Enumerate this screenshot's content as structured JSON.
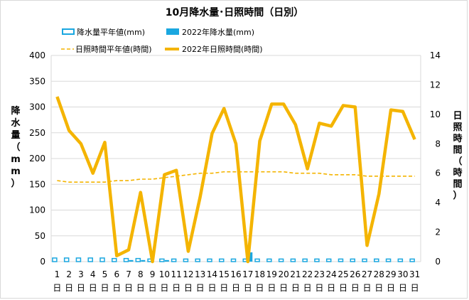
{
  "chart_data": {
    "type": "bar+line",
    "title": "10月降水量･日照時間（日別）",
    "categories": [
      "1",
      "2",
      "3",
      "4",
      "5",
      "6",
      "7",
      "8",
      "9",
      "10",
      "11",
      "12",
      "13",
      "14",
      "15",
      "16",
      "17",
      "18",
      "19",
      "20",
      "21",
      "22",
      "23",
      "24",
      "25",
      "26",
      "27",
      "28",
      "29",
      "30",
      "31"
    ],
    "category_sublabel": "日",
    "ylabel_left": "降水量（mm）",
    "ylabel_right": "日照時間（時間）",
    "ylim_left": [
      0,
      400
    ],
    "yticks_left": [
      "0",
      "50",
      "100",
      "150",
      "200",
      "250",
      "300",
      "350",
      "400"
    ],
    "ylim_right": [
      0,
      14
    ],
    "yticks_right": [
      "0",
      "2",
      "4",
      "6",
      "8",
      "10",
      "12",
      "14"
    ],
    "grid": true,
    "legend_position": "top",
    "series": [
      {
        "name": "降水量平年値(mm)",
        "kind": "bar",
        "axis": "left",
        "color": "#1aa7e0",
        "fill": "outline",
        "values": [
          7,
          7,
          7,
          7,
          7,
          6,
          6,
          6,
          5,
          5,
          5,
          5,
          5,
          5,
          5,
          5,
          5,
          5,
          5,
          5,
          5,
          5,
          5,
          5,
          5,
          5,
          5,
          5,
          5,
          5,
          5
        ]
      },
      {
        "name": "2022年降水量(mm)",
        "kind": "bar",
        "axis": "left",
        "color": "#1aa7e0",
        "fill": "solid",
        "values": [
          0,
          0,
          0,
          0,
          0,
          0,
          3,
          3,
          0,
          3,
          0,
          0,
          0,
          0,
          0,
          0,
          18,
          0,
          0,
          0,
          0,
          0,
          0,
          0,
          0,
          0,
          0,
          0,
          0,
          0,
          0
        ]
      },
      {
        "name": "日照時間平年値(時間)",
        "kind": "line",
        "axis": "right",
        "color": "#f4b400",
        "style": "dashed",
        "values": [
          5.5,
          5.4,
          5.4,
          5.4,
          5.4,
          5.5,
          5.5,
          5.6,
          5.6,
          5.7,
          5.8,
          5.9,
          6.0,
          6.0,
          6.1,
          6.1,
          6.1,
          6.1,
          6.1,
          6.1,
          6.0,
          6.0,
          6.0,
          5.9,
          5.9,
          5.9,
          5.8,
          5.8,
          5.8,
          5.8,
          5.8
        ]
      },
      {
        "name": "2022年日照時間(時間)",
        "kind": "line",
        "axis": "right",
        "color": "#f4b400",
        "style": "solid",
        "values": [
          11.2,
          8.9,
          8.0,
          6.0,
          8.1,
          0.4,
          0.8,
          4.7,
          0.0,
          5.9,
          6.2,
          0.7,
          4.4,
          8.7,
          10.4,
          8.0,
          0.0,
          8.2,
          10.7,
          10.7,
          9.3,
          6.3,
          9.4,
          9.2,
          10.6,
          10.5,
          1.1,
          4.6,
          10.3,
          10.2,
          8.3
        ]
      }
    ]
  }
}
